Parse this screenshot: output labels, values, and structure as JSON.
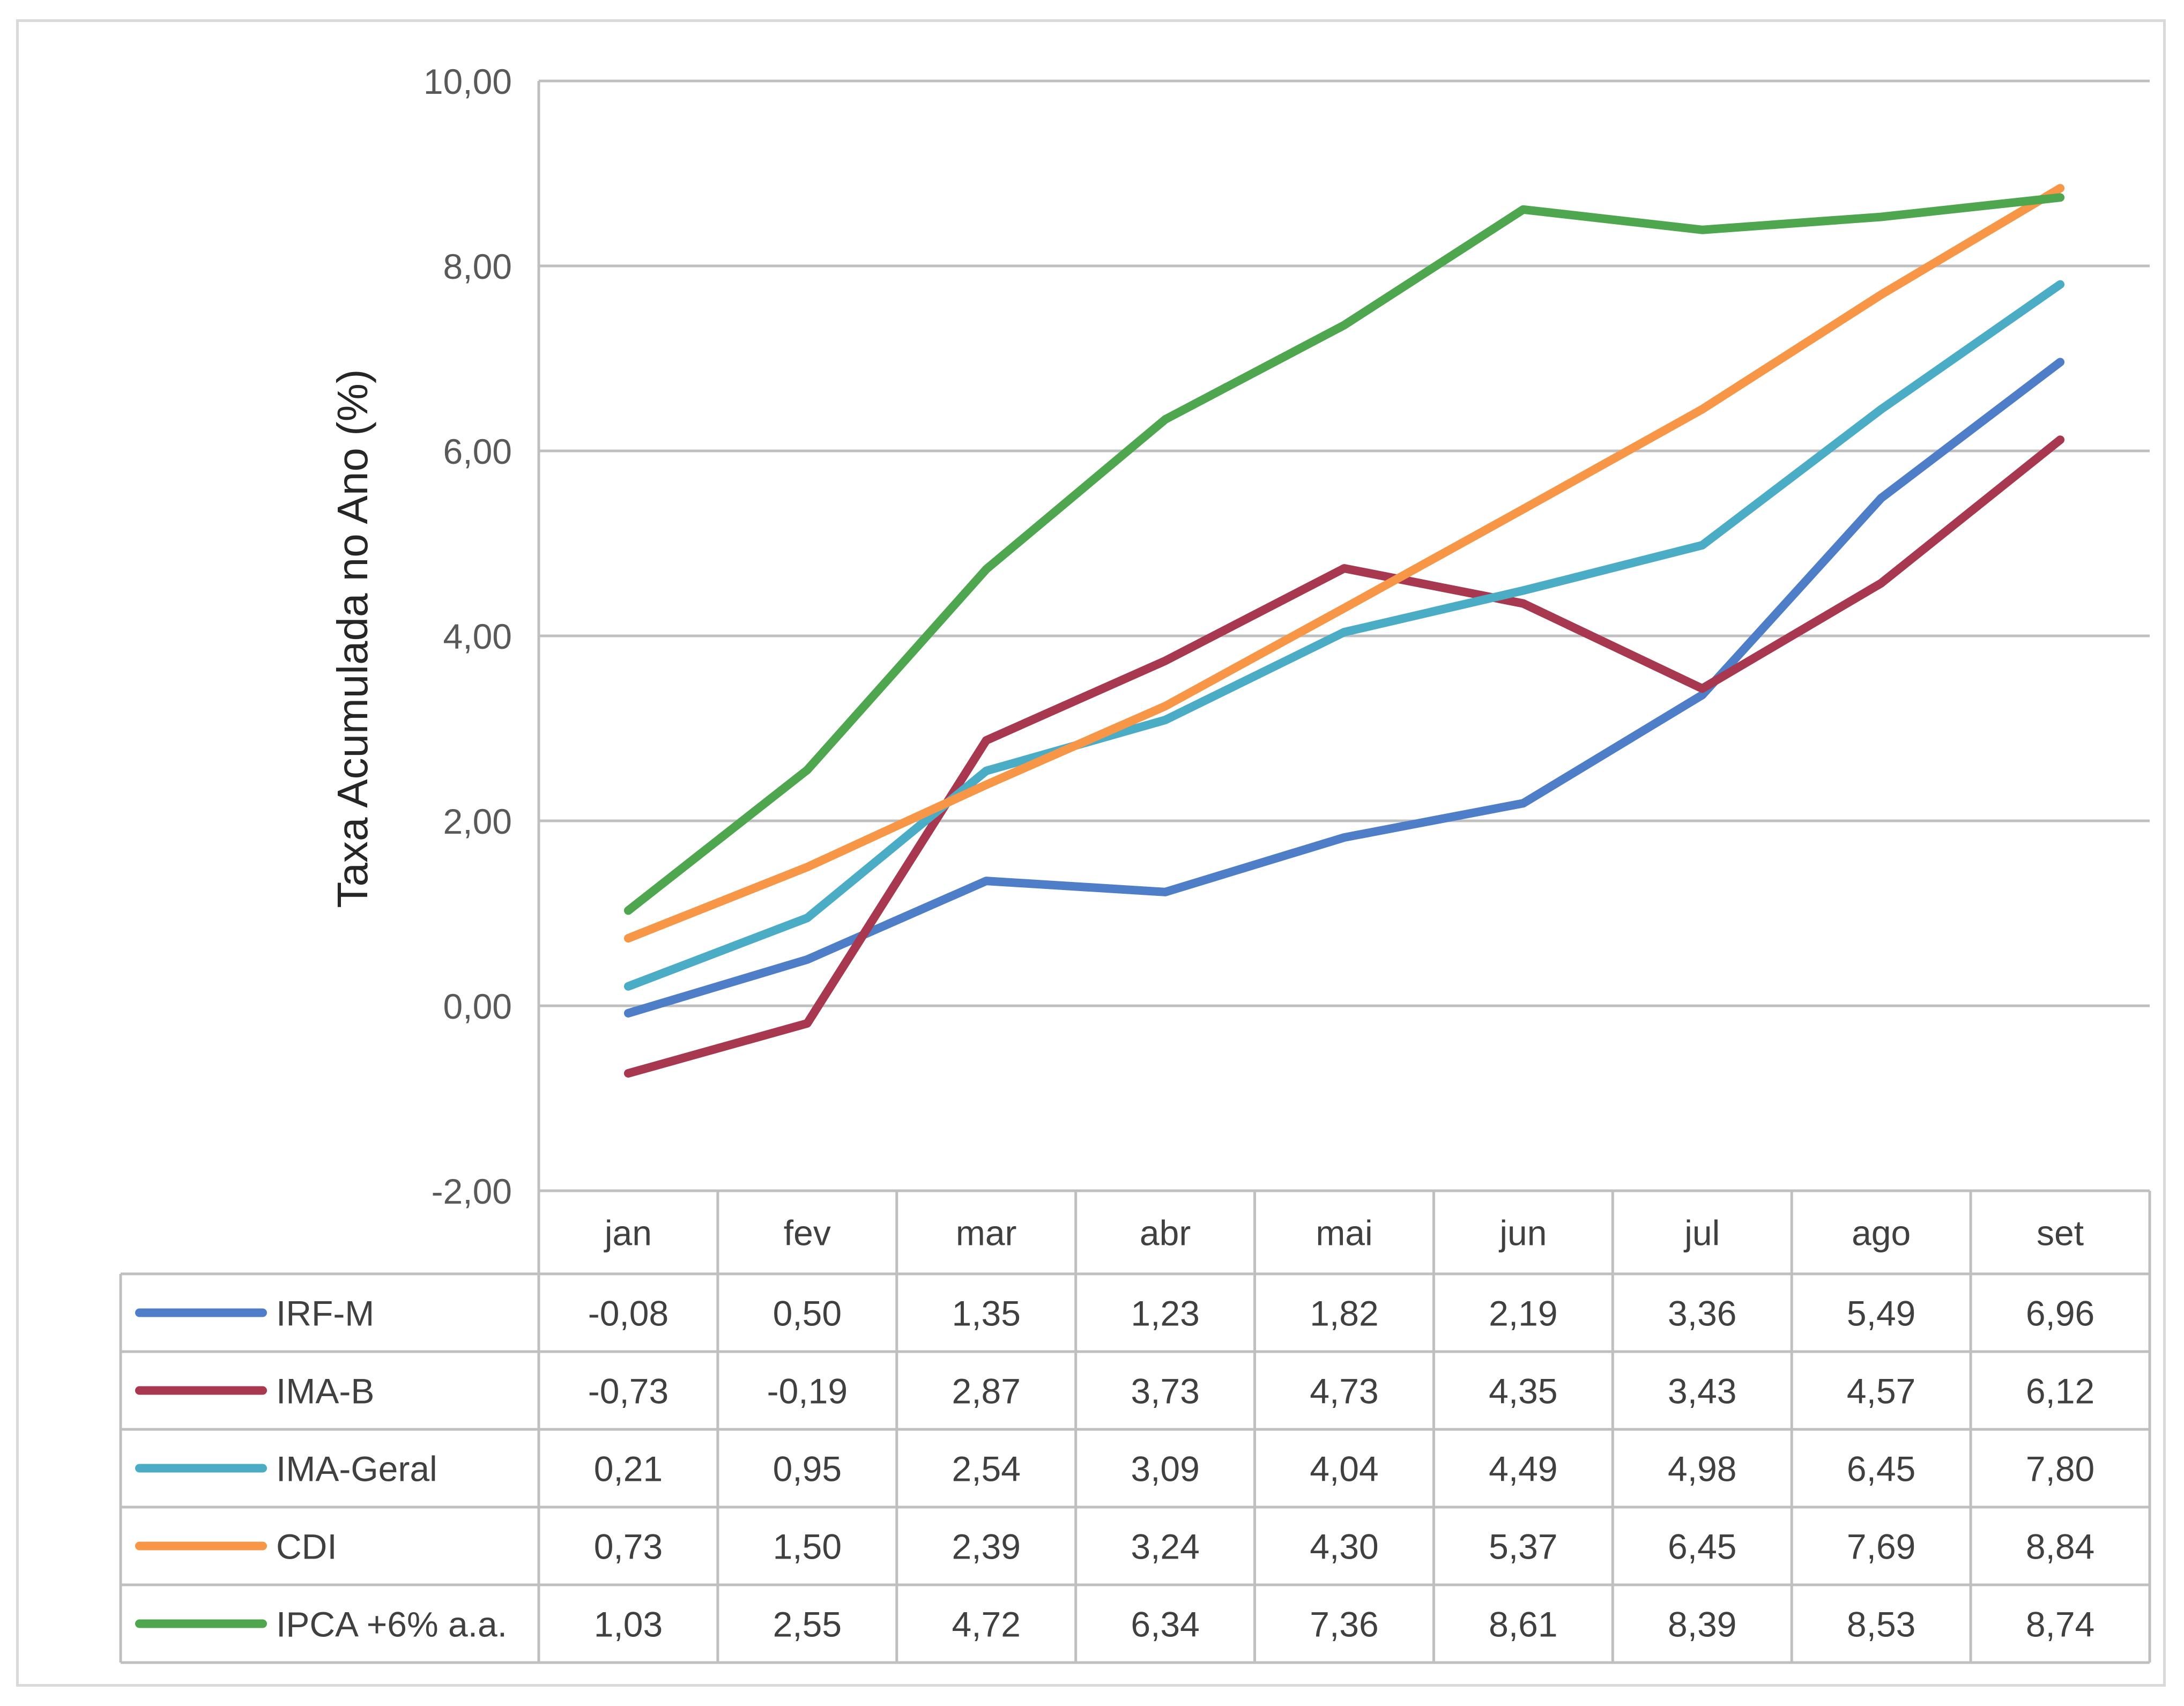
{
  "chart_data": {
    "type": "line",
    "ylabel": "Taxa Acumulada no Ano (%)",
    "ylim": [
      -2,
      10
    ],
    "yticks": [
      "10,00",
      "8,00",
      "6,00",
      "4,00",
      "2,00",
      "0,00",
      "-2,00"
    ],
    "ytick_values": [
      10,
      8,
      6,
      4,
      2,
      0,
      -2
    ],
    "categories": [
      "jan",
      "fev",
      "mar",
      "abr",
      "mai",
      "jun",
      "jul",
      "ago",
      "set"
    ],
    "grid": true,
    "legend": "data-table",
    "series": [
      {
        "name": "IRF-M",
        "color": "#4f7ec9",
        "values": [
          -0.08,
          0.5,
          1.35,
          1.23,
          1.82,
          2.19,
          3.36,
          5.49,
          6.96
        ],
        "labels": [
          "-0,08",
          "0,50",
          "1,35",
          "1,23",
          "1,82",
          "2,19",
          "3,36",
          "5,49",
          "6,96"
        ]
      },
      {
        "name": "IMA-B",
        "color": "#a8384f",
        "values": [
          -0.73,
          -0.19,
          2.87,
          3.73,
          4.73,
          4.35,
          3.43,
          4.57,
          6.12
        ],
        "labels": [
          "-0,73",
          "-0,19",
          "2,87",
          "3,73",
          "4,73",
          "4,35",
          "3,43",
          "4,57",
          "6,12"
        ]
      },
      {
        "name": "IMA-Geral",
        "color": "#4bacc6",
        "values": [
          0.21,
          0.95,
          2.54,
          3.09,
          4.04,
          4.49,
          4.98,
          6.45,
          7.8
        ],
        "labels": [
          "0,21",
          "0,95",
          "2,54",
          "3,09",
          "4,04",
          "4,49",
          "4,98",
          "6,45",
          "7,80"
        ]
      },
      {
        "name": "CDI",
        "color": "#f79646",
        "values": [
          0.73,
          1.5,
          2.39,
          3.24,
          4.3,
          5.37,
          6.45,
          7.69,
          8.84
        ],
        "labels": [
          "0,73",
          "1,50",
          "2,39",
          "3,24",
          "4,30",
          "5,37",
          "6,45",
          "7,69",
          "8,84"
        ]
      },
      {
        "name": "IPCA +6% a.a.",
        "color": "#4ea64e",
        "values": [
          1.03,
          2.55,
          4.72,
          6.34,
          7.36,
          8.61,
          8.39,
          8.53,
          8.74
        ],
        "labels": [
          "1,03",
          "2,55",
          "4,72",
          "6,34",
          "7,36",
          "8,61",
          "8,39",
          "8,53",
          "8,74"
        ]
      }
    ]
  }
}
